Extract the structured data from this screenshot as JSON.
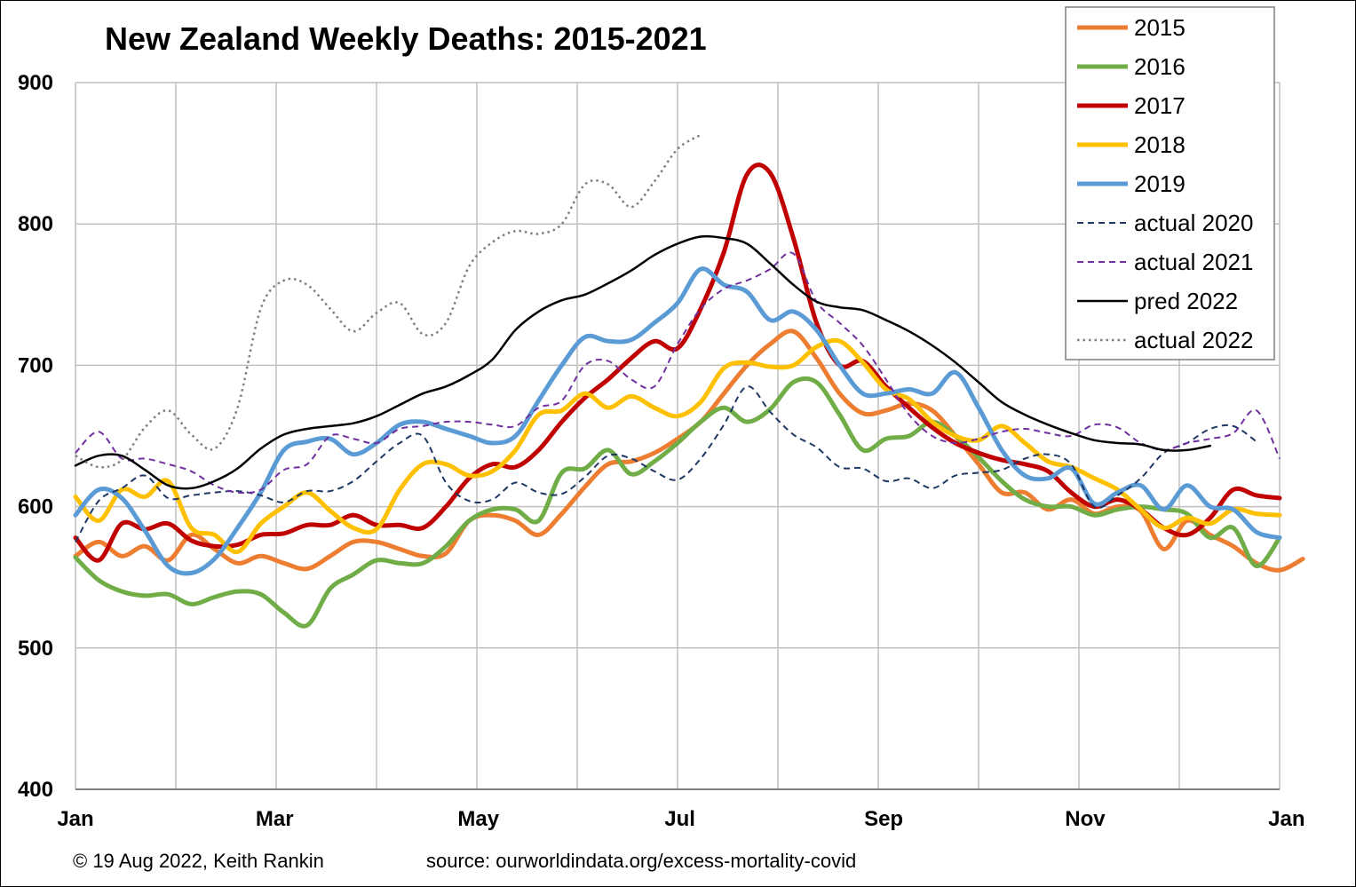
{
  "chart_data": {
    "type": "line",
    "title": "New Zealand Weekly Deaths: 2015-2021",
    "ylim": [
      400,
      900
    ],
    "yticks": [
      "400",
      "500",
      "600",
      "700",
      "800",
      "900"
    ],
    "xlim": [
      1,
      53
    ],
    "xticks": [
      {
        "label": "Jan",
        "week": 1
      },
      {
        "label": "Mar",
        "week": 9.6
      },
      {
        "label": "May",
        "week": 18.4
      },
      {
        "label": "Jul",
        "week": 27.1
      },
      {
        "label": "Sep",
        "week": 35.9
      },
      {
        "label": "Nov",
        "week": 44.6
      },
      {
        "label": "Jan",
        "week": 53.3
      }
    ],
    "grid": true,
    "legend_position": "top-right",
    "series": [
      {
        "name": "2015",
        "color": "#ED7D31",
        "style": "solid",
        "width": 5,
        "values": [
          565,
          575,
          565,
          572,
          562,
          580,
          570,
          560,
          565,
          560,
          556,
          565,
          575,
          575,
          570,
          565,
          567,
          590,
          594,
          590,
          580,
          595,
          614,
          630,
          632,
          638,
          648,
          660,
          680,
          700,
          715,
          724,
          705,
          680,
          666,
          668,
          673,
          668,
          650,
          630,
          610,
          610,
          598,
          605,
          595,
          600,
          597,
          570,
          590,
          580,
          572,
          560,
          555,
          563
        ]
      },
      {
        "name": "2016",
        "color": "#70AD47",
        "style": "solid",
        "width": 5,
        "values": [
          564,
          548,
          540,
          537,
          538,
          531,
          536,
          540,
          538,
          525,
          516,
          542,
          552,
          562,
          560,
          560,
          572,
          590,
          598,
          598,
          590,
          624,
          627,
          640,
          623,
          632,
          645,
          660,
          670,
          660,
          669,
          688,
          688,
          665,
          640,
          648,
          650,
          660,
          650,
          635,
          618,
          605,
          600,
          600,
          594,
          598,
          600,
          598,
          595,
          578,
          585,
          558,
          578
        ]
      },
      {
        "name": "2017",
        "color": "#C00000",
        "style": "solid",
        "width": 5,
        "values": [
          578,
          562,
          588,
          584,
          588,
          576,
          572,
          573,
          580,
          581,
          587,
          587,
          594,
          587,
          587,
          585,
          600,
          620,
          630,
          628,
          640,
          660,
          677,
          690,
          705,
          717,
          712,
          740,
          780,
          835,
          836,
          790,
          730,
          700,
          703,
          685,
          670,
          656,
          645,
          638,
          633,
          630,
          625,
          610,
          600,
          605,
          598,
          585,
          580,
          592,
          612,
          608,
          606
        ]
      },
      {
        "name": "2018",
        "color": "#FFC000",
        "style": "solid",
        "width": 5,
        "values": [
          607,
          590,
          612,
          607,
          618,
          585,
          580,
          568,
          588,
          600,
          610,
          597,
          585,
          584,
          612,
          630,
          630,
          622,
          625,
          640,
          665,
          668,
          680,
          670,
          678,
          670,
          664,
          674,
          698,
          702,
          699,
          700,
          713,
          717,
          702,
          683,
          676,
          660,
          650,
          647,
          657,
          645,
          632,
          628,
          620,
          612,
          598,
          585,
          592,
          588,
          598,
          595,
          594
        ]
      },
      {
        "name": "2019",
        "color": "#5B9BD5",
        "style": "solid",
        "width": 5,
        "values": [
          594,
          612,
          606,
          583,
          558,
          553,
          563,
          585,
          610,
          640,
          646,
          648,
          637,
          645,
          658,
          660,
          655,
          650,
          645,
          650,
          675,
          700,
          720,
          717,
          718,
          730,
          744,
          768,
          757,
          752,
          732,
          738,
          725,
          700,
          680,
          680,
          683,
          680,
          695,
          670,
          640,
          622,
          620,
          627,
          602,
          610,
          615,
          598,
          615,
          600,
          598,
          582,
          578
        ]
      }
    ],
    "dashed_series": [
      {
        "name": "actual 2020",
        "color": "#1F3864",
        "style": "dashed",
        "width": 2,
        "values": [
          575,
          604,
          613,
          622,
          606,
          608,
          610,
          611,
          608,
          603,
          611,
          611,
          618,
          632,
          645,
          650,
          617,
          604,
          605,
          617,
          610,
          609,
          621,
          636,
          634,
          625,
          619,
          634,
          658,
          685,
          667,
          651,
          642,
          628,
          627,
          618,
          620,
          613,
          622,
          624,
          626,
          634,
          637,
          630,
          600,
          608,
          620,
          638,
          645,
          655,
          657,
          646
        ]
      },
      {
        "name": "actual 2021",
        "color": "#7030A0",
        "style": "dashed",
        "width": 2,
        "values": [
          638,
          653,
          634,
          634,
          630,
          625,
          615,
          610,
          612,
          626,
          630,
          650,
          648,
          645,
          655,
          657,
          660,
          660,
          658,
          657,
          670,
          675,
          700,
          703,
          690,
          685,
          715,
          740,
          754,
          760,
          768,
          779,
          745,
          730,
          714,
          690,
          665,
          650,
          645,
          648,
          653,
          655,
          652,
          650,
          658,
          656,
          645,
          640,
          645,
          648,
          652,
          668,
          634
        ]
      },
      {
        "name": "pred 2022",
        "color": "#000000",
        "style": "solid",
        "width": 2.5,
        "values": [
          629,
          636,
          636,
          626,
          615,
          613,
          618,
          627,
          641,
          651,
          655,
          657,
          659,
          664,
          672,
          680,
          685,
          693,
          704,
          725,
          738,
          746,
          750,
          758,
          767,
          778,
          786,
          791,
          790,
          786,
          772,
          757,
          745,
          741,
          739,
          732,
          724,
          714,
          702,
          688,
          674,
          665,
          658,
          652,
          647,
          645,
          644,
          640,
          640,
          643
        ]
      },
      {
        "name": "actual 2022",
        "color": "#7F7F7F",
        "style": "dotted",
        "width": 2.5,
        "values": [
          636,
          628,
          633,
          656,
          668,
          651,
          641,
          670,
          740,
          760,
          757,
          740,
          724,
          737,
          744,
          722,
          730,
          770,
          787,
          795,
          793,
          800,
          828,
          828,
          812,
          830,
          853,
          863
        ]
      }
    ],
    "legend": [
      "2015",
      "2016",
      "2017",
      "2018",
      "2019",
      "actual 2020",
      "actual 2021",
      "pred 2022",
      "actual 2022"
    ]
  },
  "footer": {
    "copyright": "© 19 Aug 2022, Keith Rankin",
    "source": "source: ourworldindata.org/excess-mortality-covid"
  }
}
